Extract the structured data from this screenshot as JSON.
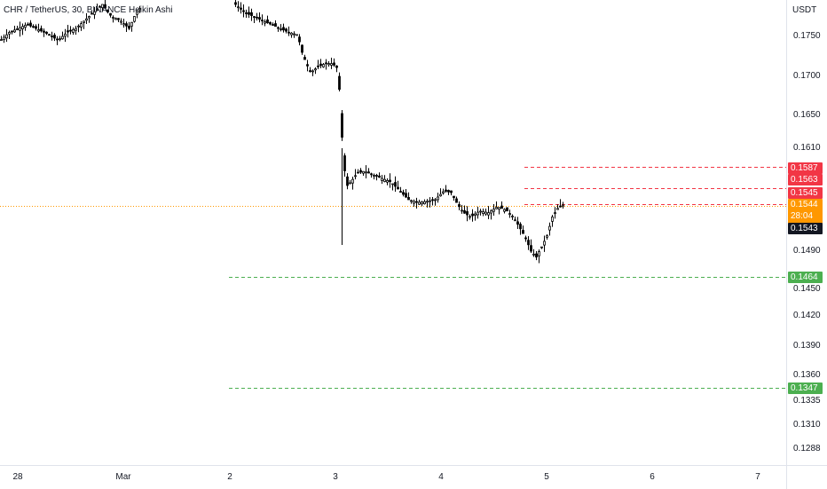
{
  "legend": {
    "title": "CHR / TetherUS, 30, BINANCE  Heikin Ashi"
  },
  "price_scale": {
    "currency": "USDT",
    "ticks": [
      "0.1750",
      "0.1700",
      "0.1650",
      "0.1610",
      "0.1490",
      "0.1450",
      "0.1420",
      "0.1390",
      "0.1360",
      "0.1335",
      "0.1310",
      "0.1288"
    ]
  },
  "time_scale": {
    "labels": [
      "28",
      "Mar",
      "2",
      "3",
      "4",
      "5",
      "6",
      "7"
    ]
  },
  "levels": {
    "resistance_1": "0.1587",
    "resistance_2": "0.1563",
    "resistance_3": "0.1545",
    "support_1": "0.1464",
    "support_2": "0.1347"
  },
  "current": {
    "price": "0.1544",
    "countdown": "28:04",
    "crosshair_price": "0.1543"
  },
  "colors": {
    "resistance": "#f23645",
    "support": "#4caf50",
    "last_price": "#ff9800",
    "candle": "#000000"
  },
  "chart_data": {
    "type": "candlestick",
    "series_type": "Heikin Ashi",
    "symbol": "CHR / TetherUS",
    "interval": "30",
    "exchange": "BINANCE",
    "x": [
      "28",
      "Mar",
      "2",
      "3",
      "4",
      "5",
      "6",
      "7"
    ],
    "close_path": [
      [
        "28",
        0.1745
      ],
      [
        "Mar",
        0.176
      ],
      [
        "2",
        0.177
      ],
      [
        "3",
        0.17
      ],
      [
        "3",
        0.157
      ],
      [
        "4",
        0.153
      ],
      [
        "5",
        0.148
      ],
      [
        "5",
        0.1544
      ]
    ],
    "horizontal_lines": [
      {
        "price": 0.1587,
        "color": "red",
        "style": "dashed"
      },
      {
        "price": 0.1563,
        "color": "red",
        "style": "dashed"
      },
      {
        "price": 0.1545,
        "color": "red",
        "style": "dashed"
      },
      {
        "price": 0.1464,
        "color": "green",
        "style": "dashed"
      },
      {
        "price": 0.1347,
        "color": "green",
        "style": "dashed"
      }
    ],
    "last_price_line": 0.1544,
    "ylim": [
      0.128,
      0.1785
    ]
  }
}
